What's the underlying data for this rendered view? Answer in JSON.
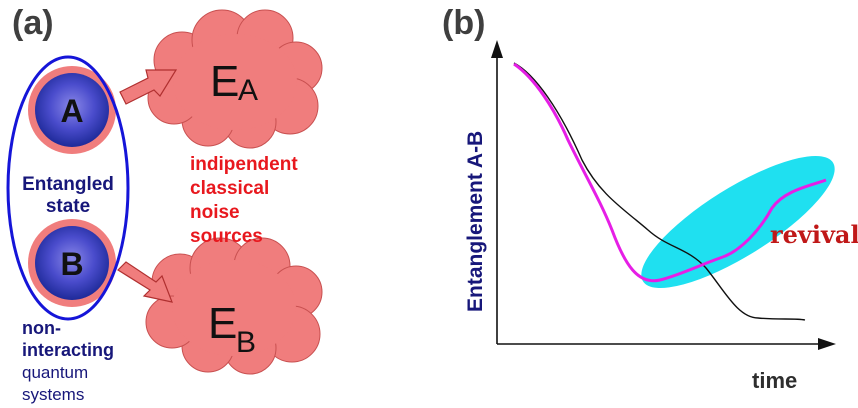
{
  "panel_a": {
    "label": "(a)",
    "qubit_a": "A",
    "qubit_b": "B",
    "entangled_line1": "Entangled",
    "entangled_line2": "state",
    "env_a": {
      "letter": "E",
      "sub": "A"
    },
    "env_b": {
      "letter": "E",
      "sub": "B"
    },
    "noise_line1": "indipendent",
    "noise_line2": "classical",
    "noise_line3": "noise",
    "noise_line4": "sources",
    "systems_line1": "non-",
    "systems_line2": "interacting",
    "systems_line3": "quantum",
    "systems_line4": "systems"
  },
  "panel_b": {
    "label": "(b)",
    "ylabel": "Entanglement A-B",
    "xlabel": "time",
    "annotation": "revival"
  },
  "colors": {
    "qubit_fill": "#2e3bb5",
    "qubit_ring": "#f07d7d",
    "cloud": "#f07d7d",
    "ellipse": "#1515d8",
    "magenta": "#e61ee6",
    "cyan": "#1fe0f0"
  }
}
